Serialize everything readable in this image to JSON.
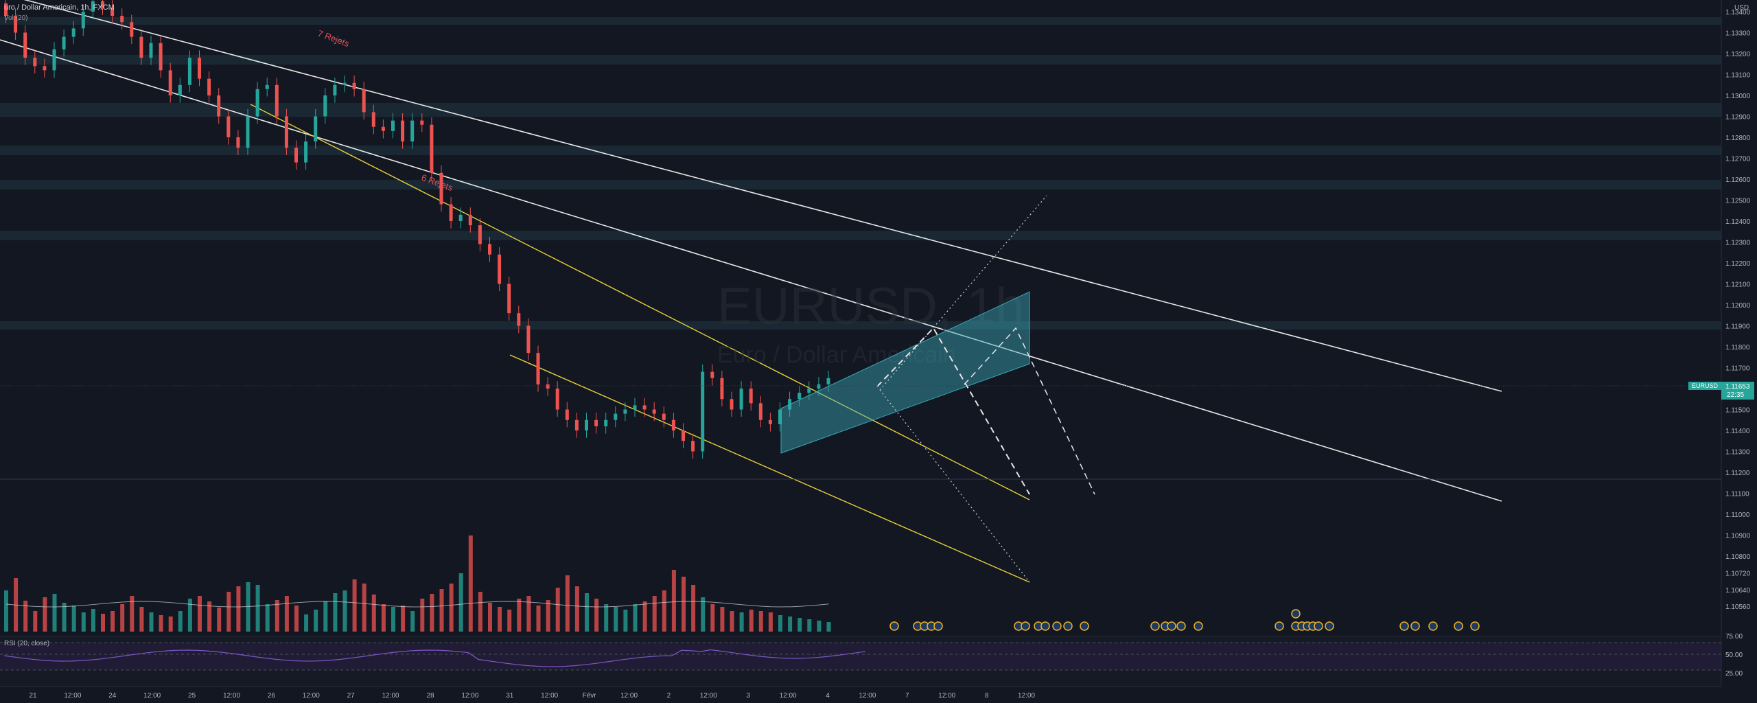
{
  "header": {
    "symbol_line": "uro / Dollar Americain, 1h, FXCM",
    "vol_line": "Vol (20)"
  },
  "currency": "USD",
  "price_tag": {
    "symbol": "EURUSD",
    "price": "1.11653",
    "countdown": "22:35"
  },
  "watermark": {
    "main": "EURUSD, 1h",
    "sub": "Euro / Dollar Americain"
  },
  "annotations": [
    "7 Rejets",
    "6 Rejets"
  ],
  "rsi_label": "RSI (20, close)",
  "rsi_ticks": [
    "75.00",
    "50.00",
    "25.00"
  ],
  "colors": {
    "up": "#26a69a",
    "down": "#ef5350",
    "bg": "#131722",
    "zone": "#1c2a36",
    "channel": "#e6e6e6",
    "trend": "#e8d23a",
    "rect": "#3aa8b8"
  },
  "chart_data": {
    "type": "candlestick",
    "title": "EURUSD, 1h",
    "ylim": [
      1.105,
      1.135
    ],
    "y_ticks": [
      "1.13400",
      "1.13300",
      "1.13200",
      "1.13100",
      "1.13000",
      "1.12900",
      "1.12800",
      "1.12700",
      "1.12600",
      "1.12500",
      "1.12400",
      "1.12300",
      "1.12200",
      "1.12100",
      "1.12000",
      "1.11900",
      "1.11800",
      "1.11700",
      "1.11500",
      "1.11400",
      "1.11300",
      "1.11200",
      "1.11100",
      "1.11000",
      "1.10900",
      "1.10800",
      "1.10720",
      "1.10640",
      "1.10560"
    ],
    "x_ticks": [
      "21",
      "12:00",
      "24",
      "12:00",
      "25",
      "12:00",
      "26",
      "12:00",
      "27",
      "12:00",
      "28",
      "12:00",
      "31",
      "12:00",
      "Févr",
      "12:00",
      "2",
      "12:00",
      "3",
      "12:00",
      "4",
      "12:00",
      "7",
      "12:00",
      "8",
      "12:00"
    ],
    "close_path": [
      1.1338,
      1.133,
      1.1318,
      1.1314,
      1.1312,
      1.1322,
      1.1328,
      1.1332,
      1.134,
      1.1345,
      1.1342,
      1.1338,
      1.1335,
      1.1328,
      1.1318,
      1.1325,
      1.1312,
      1.13,
      1.1305,
      1.1318,
      1.1308,
      1.13,
      1.129,
      1.128,
      1.1275,
      1.129,
      1.1303,
      1.1305,
      1.129,
      1.1275,
      1.1268,
      1.1278,
      1.129,
      1.13,
      1.1305,
      1.1306,
      1.1303,
      1.1292,
      1.1285,
      1.1283,
      1.1288,
      1.1278,
      1.1288,
      1.1286,
      1.1263,
      1.1248,
      1.124,
      1.1243,
      1.1238,
      1.1229,
      1.1224,
      1.121,
      1.1196,
      1.119,
      1.1177,
      1.1162,
      1.116,
      1.115,
      1.1145,
      1.114,
      1.1145,
      1.1142,
      1.1145,
      1.1148,
      1.115,
      1.1152,
      1.115,
      1.1148,
      1.1145,
      1.114,
      1.1135,
      1.113,
      1.1168,
      1.1165,
      1.1155,
      1.115,
      1.116,
      1.1153,
      1.1145,
      1.1143,
      1.115,
      1.1155,
      1.1158,
      1.116,
      1.1162,
      1.1165
    ],
    "volume_ma": "Vol (20)",
    "rsi": {
      "period": 20,
      "source": "close",
      "levels": [
        25,
        50,
        75
      ]
    }
  }
}
